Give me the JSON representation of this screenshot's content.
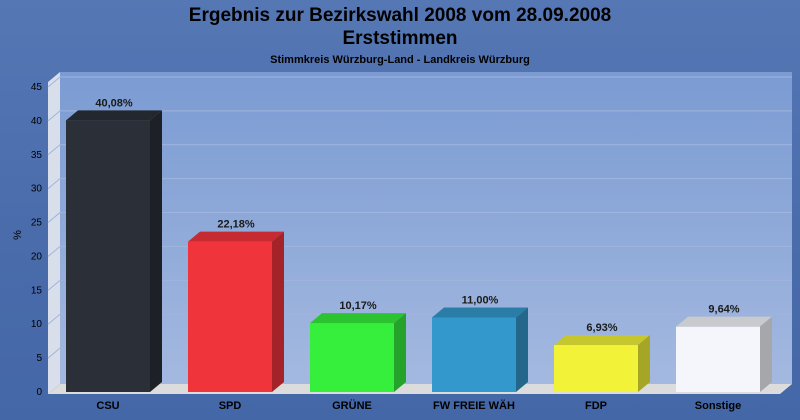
{
  "chart_data": {
    "type": "bar",
    "title": "Ergebnis zur Bezirkswahl 2008 vom 28.09.2008\nErststimmen",
    "subtitle": "Stimmkreis Würzburg-Land - Landkreis Würzburg",
    "xlabel": "",
    "ylabel": "%",
    "ylim": [
      0,
      45
    ],
    "yticks": [
      0,
      5,
      10,
      15,
      20,
      25,
      30,
      35,
      40,
      45
    ],
    "grid": true,
    "legend": "none",
    "categories": [
      "CSU",
      "SPD",
      "GRÜNE",
      "FW FREIE WÄH",
      "FDP",
      "Sonstige"
    ],
    "values": [
      40.08,
      22.18,
      10.17,
      11.0,
      6.93,
      9.64
    ],
    "data_labels": [
      "40,08%",
      "22,18%",
      "10,17%",
      "11,00%",
      "6,93%",
      "9,64%"
    ],
    "colors": [
      "#2b2f38",
      "#f0343c",
      "#36ee3c",
      "#3399cc",
      "#f2f238",
      "#f4f6fb"
    ]
  }
}
